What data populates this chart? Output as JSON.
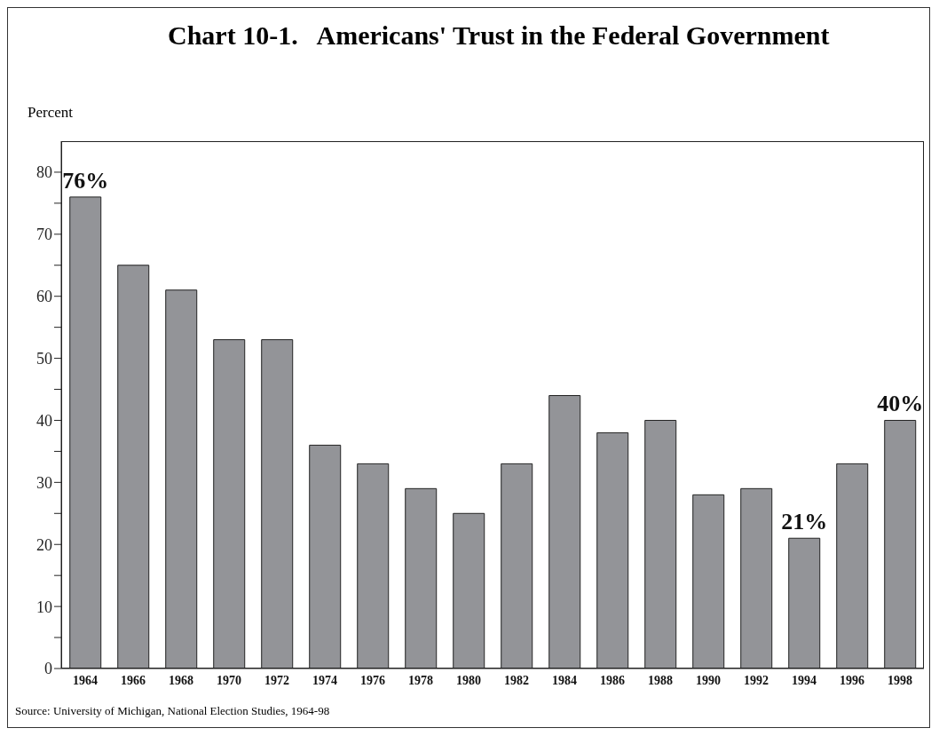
{
  "chart_data": {
    "type": "bar",
    "title": "Chart 10-1.   Americans' Trust in the Federal Government",
    "ylabel": "Percent",
    "categories": [
      "1964",
      "1966",
      "1968",
      "1970",
      "1972",
      "1974",
      "1976",
      "1978",
      "1980",
      "1982",
      "1984",
      "1986",
      "1988",
      "1990",
      "1992",
      "1994",
      "1996",
      "1998"
    ],
    "values": [
      76,
      65,
      61,
      53,
      53,
      36,
      33,
      29,
      25,
      33,
      44,
      38,
      40,
      28,
      29,
      21,
      33,
      40
    ],
    "value_labels": [
      "76%",
      null,
      null,
      null,
      null,
      null,
      null,
      null,
      null,
      null,
      null,
      null,
      null,
      null,
      null,
      "21%",
      null,
      "40%"
    ],
    "color": "#939498",
    "ylim": [
      0,
      85
    ],
    "yticks": [
      0,
      {
        "value": 5,
        "label": null
      },
      10,
      {
        "value": 15,
        "label": null
      },
      20,
      {
        "value": 25,
        "label": null
      },
      30,
      {
        "value": 35,
        "label": null
      },
      40,
      {
        "value": 45,
        "label": null
      },
      50,
      {
        "value": 55,
        "label": null
      },
      60,
      {
        "value": 65,
        "label": null
      },
      70,
      {
        "value": 75,
        "label": null
      },
      80
    ],
    "annotations": [
      "Source:  University of Michigan, National Election Studies, 1964-98"
    ]
  }
}
